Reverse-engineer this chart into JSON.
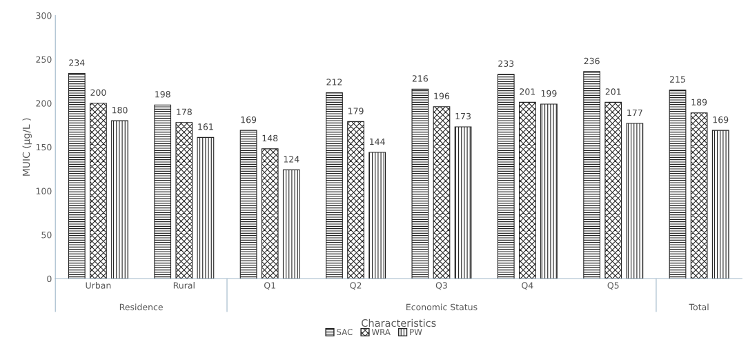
{
  "chart_data": {
    "type": "bar",
    "categories": [
      "Urban",
      "Rural",
      "Q1",
      "Q2",
      "Q3",
      "Q4",
      "Q5",
      null
    ],
    "series": [
      {
        "name": "SAC",
        "color": "#222222",
        "values": [
          234,
          198,
          169,
          212,
          216,
          233,
          236,
          215
        ]
      },
      {
        "name": "WRA",
        "color": "#222222",
        "values": [
          200,
          178,
          148,
          179,
          196,
          201,
          201,
          189
        ]
      },
      {
        "name": "PW",
        "color": "#222222",
        "values": [
          180,
          161,
          124,
          144,
          173,
          199,
          177,
          169
        ]
      }
    ],
    "ylabel": "MUIC (µg/L )",
    "xlabel": "Characteristics",
    "annotations": [
      "Residence",
      "Economic Status",
      "Total"
    ],
    "ylim": [
      0,
      300
    ],
    "yticks": [
      0,
      50,
      100,
      150,
      200,
      250,
      300
    ],
    "data_labels": true,
    "grid": false,
    "legend": "bottom"
  }
}
